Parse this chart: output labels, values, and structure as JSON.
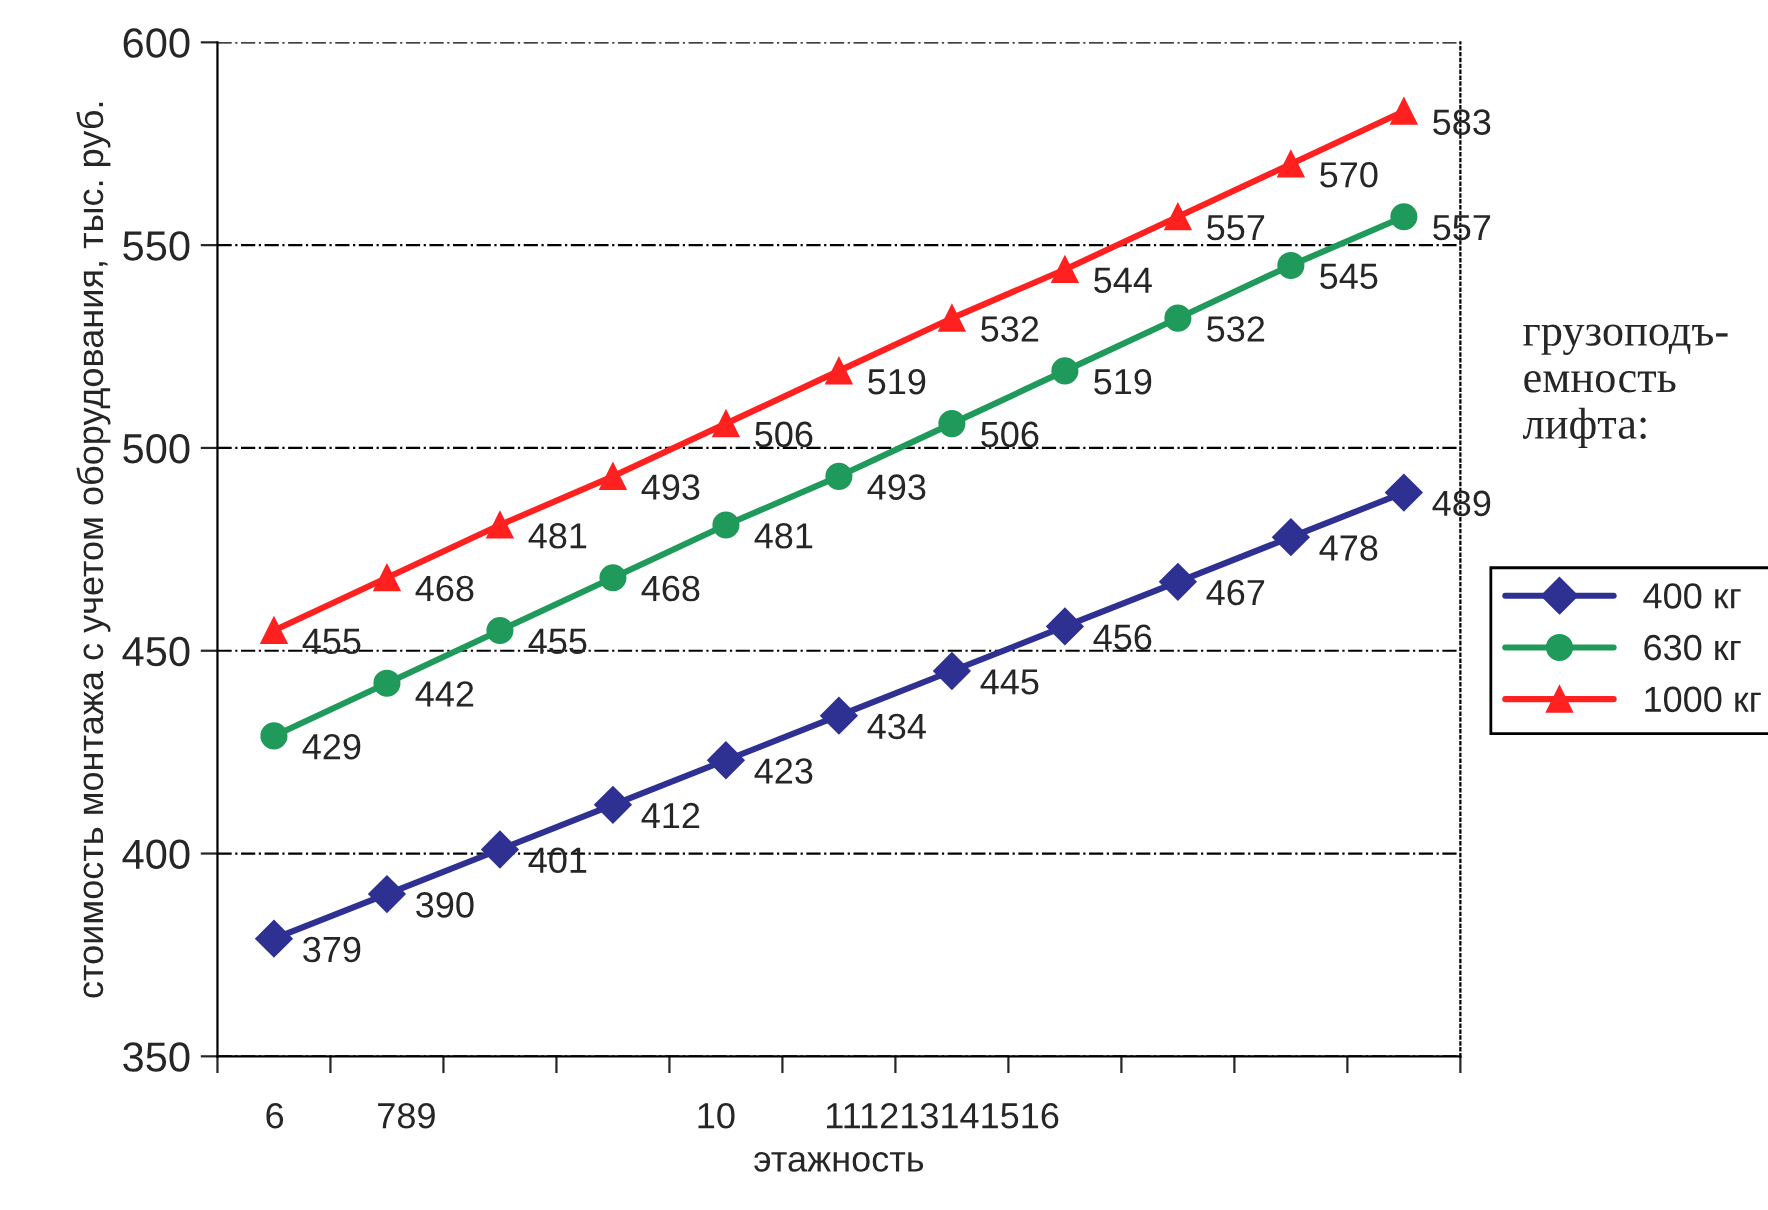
{
  "chart_data": {
    "type": "line",
    "xlabel": "этажность",
    "ylabel": "стоимость монтажа с учетом оборудования, тыс. руб.",
    "legend_title": "грузоподъ-\nемность\nлифта:",
    "categories": [
      null,
      null,
      null,
      null,
      null,
      null,
      null,
      null,
      null,
      null,
      null
    ],
    "annotations": [
      "6",
      "789",
      "10",
      "111213141516"
    ],
    "ylim": [
      350,
      600
    ],
    "yticks": [
      350,
      400,
      450,
      500,
      550,
      600
    ],
    "grid": "y",
    "legend": "right",
    "data_labels": true,
    "series": [
      {
        "name": "400 кг",
        "color": "#2e3192",
        "marker": "diamond",
        "values": [
          379,
          390,
          401,
          412,
          423,
          434,
          445,
          456,
          467,
          478,
          489
        ]
      },
      {
        "name": "630 кг",
        "color": "#1f9a5a",
        "marker": "circle",
        "values": [
          429,
          442,
          455,
          468,
          481,
          493,
          506,
          519,
          532,
          545,
          557
        ]
      },
      {
        "name": "1000 кг",
        "color": "#ff2020",
        "marker": "triangle",
        "values": [
          455,
          468,
          481,
          493,
          506,
          519,
          532,
          544,
          557,
          570,
          583
        ]
      }
    ]
  }
}
